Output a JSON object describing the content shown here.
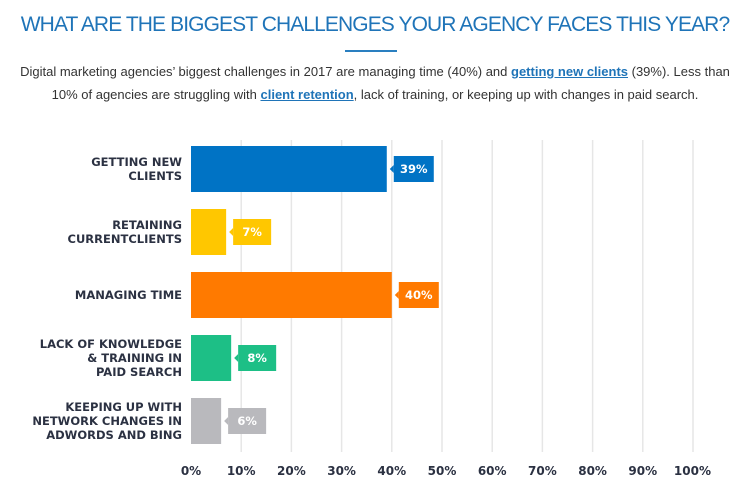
{
  "header": {
    "title": "WHAT ARE THE BIGGEST CHALLENGES YOUR AGENCY FACES THIS YEAR?",
    "subtitle_parts": [
      "Digital marketing agencies’ biggest challenges in 2017 are managing time (40%) and ",
      "getting new clients",
      " (39%). Less than 10% of agencies are struggling with ",
      "client retention",
      ", lack of training, or keeping up with changes in paid search."
    ]
  },
  "chart_data": {
    "type": "bar",
    "orientation": "horizontal",
    "categories": [
      [
        "GETTING NEW",
        "CLIENTS"
      ],
      [
        "RETAINING",
        "CURRENTCLIENTS"
      ],
      [
        "MANAGING TIME"
      ],
      [
        "LACK OF KNOWLEDGE",
        "& TRAINING IN",
        "PAID SEARCH"
      ],
      [
        "KEEPING UP WITH",
        "NETWORK CHANGES IN",
        "ADWORDS AND BING"
      ]
    ],
    "values": [
      39,
      7,
      40,
      8,
      6
    ],
    "data_labels": [
      "39%",
      "7%",
      "40%",
      "8%",
      "6%"
    ],
    "colors": [
      "#0073c5",
      "#ffc700",
      "#ff7a00",
      "#1dbf86",
      "#b9b9bd"
    ],
    "xlim": [
      0,
      100
    ],
    "xticks": [
      "0%",
      "10%",
      "20%",
      "30%",
      "40%",
      "50%",
      "60%",
      "70%",
      "80%",
      "90%",
      "100%"
    ],
    "grid": true
  }
}
